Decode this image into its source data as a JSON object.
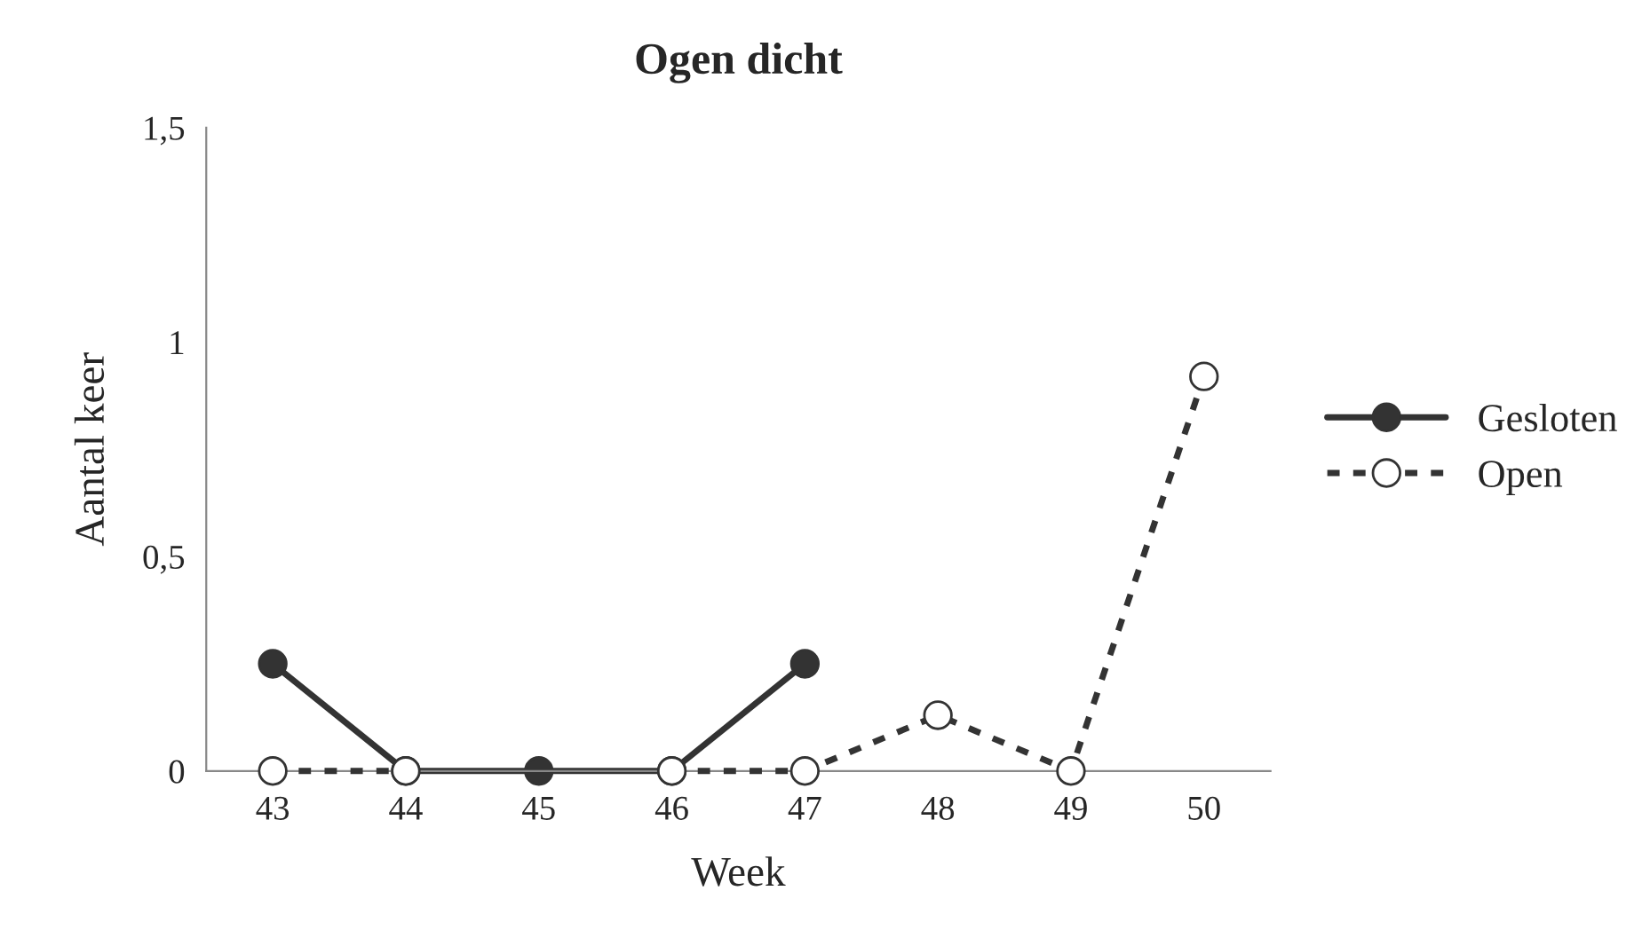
{
  "chart_data": {
    "type": "line",
    "title": "Ogen dicht",
    "xlabel": "Week",
    "ylabel": "Aantal keer",
    "categories": [
      "43",
      "44",
      "45",
      "46",
      "47",
      "48",
      "49",
      "50"
    ],
    "series": [
      {
        "name": "Gesloten",
        "color": "#333333",
        "line_style": "solid",
        "values": [
          0.25,
          0,
          0,
          0,
          0.25,
          null,
          null,
          null
        ]
      },
      {
        "name": "Open",
        "color": "#333333",
        "line_style": "dotted",
        "values": [
          0,
          0,
          null,
          0,
          0,
          0.13,
          0,
          0.92
        ]
      }
    ],
    "ylim": [
      0,
      1.5
    ],
    "yticks": [
      0,
      {
        "value": 0.5,
        "label": "0,5"
      },
      1,
      {
        "value": 1.5,
        "label": "1,5"
      }
    ],
    "grid": false,
    "legend": "right",
    "marker": "circle"
  }
}
